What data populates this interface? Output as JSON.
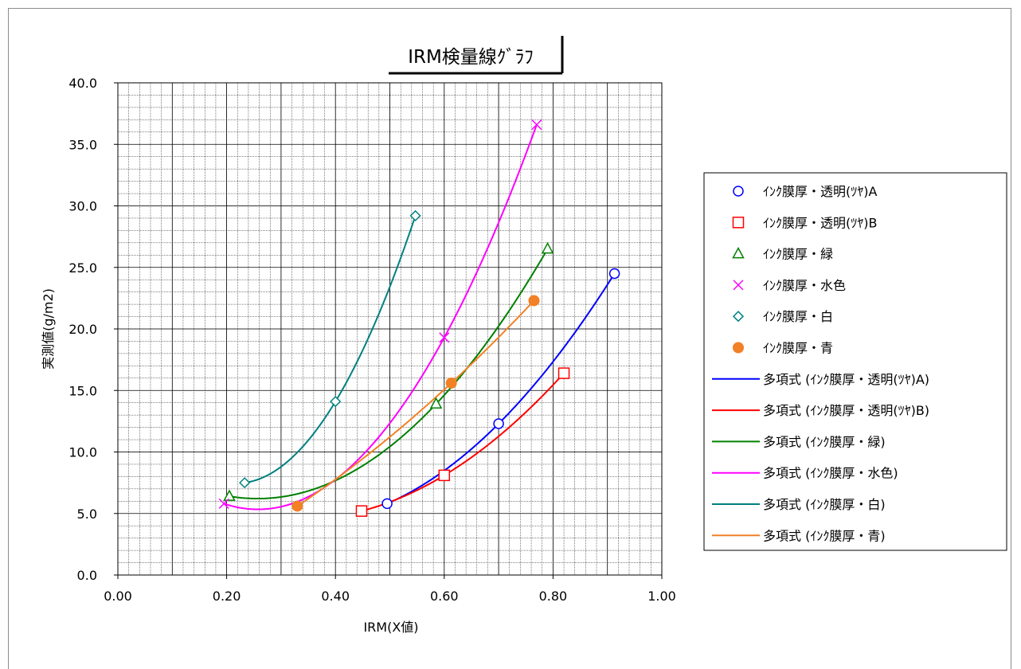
{
  "chart_data": {
    "type": "scatter",
    "title": "IRM検量線ｸﾞﾗﾌ",
    "xlabel": "IRM(X値)",
    "ylabel": "実測値(g/m2)",
    "xlim": [
      0.0,
      1.0
    ],
    "ylim": [
      0.0,
      40.0
    ],
    "x_ticks": [
      "0.00",
      "0.20",
      "0.40",
      "0.60",
      "0.80",
      "1.00"
    ],
    "y_ticks": [
      "0.0",
      "5.0",
      "10.0",
      "15.0",
      "20.0",
      "25.0",
      "30.0",
      "35.0",
      "40.0"
    ],
    "grid": true,
    "legend_position": "right",
    "series": [
      {
        "name": "ｲﾝｸ膜厚・透明(ﾂﾔ)A",
        "marker": "circle",
        "color": "#0000ff",
        "x": [
          0.495,
          0.7,
          0.913
        ],
        "y": [
          5.8,
          12.3,
          24.5
        ]
      },
      {
        "name": "ｲﾝｸ膜厚・透明(ﾂﾔ)B",
        "marker": "square",
        "color": "#ff0000",
        "x": [
          0.448,
          0.6,
          0.82
        ],
        "y": [
          5.2,
          8.1,
          16.4
        ]
      },
      {
        "name": "ｲﾝｸ膜厚・緑",
        "marker": "triangle",
        "color": "#008000",
        "x": [
          0.205,
          0.585,
          0.79
        ],
        "y": [
          6.4,
          13.9,
          26.5
        ]
      },
      {
        "name": "ｲﾝｸ膜厚・水色",
        "marker": "x",
        "color": "#ff00ff",
        "x": [
          0.195,
          0.6,
          0.77
        ],
        "y": [
          5.8,
          19.3,
          36.6
        ]
      },
      {
        "name": "ｲﾝｸ膜厚・白",
        "marker": "diamond",
        "color": "#008080",
        "x": [
          0.233,
          0.4,
          0.547
        ],
        "y": [
          7.5,
          14.1,
          29.2
        ]
      },
      {
        "name": "ｲﾝｸ膜厚・青",
        "marker": "filled-circle",
        "color": "#f28025",
        "x": [
          0.33,
          0.613,
          0.765
        ],
        "y": [
          5.6,
          15.6,
          22.3
        ]
      }
    ],
    "trendlines": [
      {
        "name": "多項式 (ｲﾝｸ膜厚・透明(ﾂﾔ)A)",
        "color": "#0000ff",
        "x_range": [
          0.495,
          0.913
        ]
      },
      {
        "name": "多項式 (ｲﾝｸ膜厚・透明(ﾂﾔ)B)",
        "color": "#ff0000",
        "x_range": [
          0.448,
          0.82
        ]
      },
      {
        "name": "多項式 (ｲﾝｸ膜厚・緑)",
        "color": "#008000",
        "x_range": [
          0.205,
          0.79
        ]
      },
      {
        "name": "多項式 (ｲﾝｸ膜厚・水色)",
        "color": "#ff00ff",
        "x_range": [
          0.195,
          0.77
        ]
      },
      {
        "name": "多項式 (ｲﾝｸ膜厚・白)",
        "color": "#008080",
        "x_range": [
          0.233,
          0.547
        ]
      },
      {
        "name": "多項式 (ｲﾝｸ膜厚・青)",
        "color": "#f28025",
        "x_range": [
          0.33,
          0.765
        ]
      }
    ]
  }
}
